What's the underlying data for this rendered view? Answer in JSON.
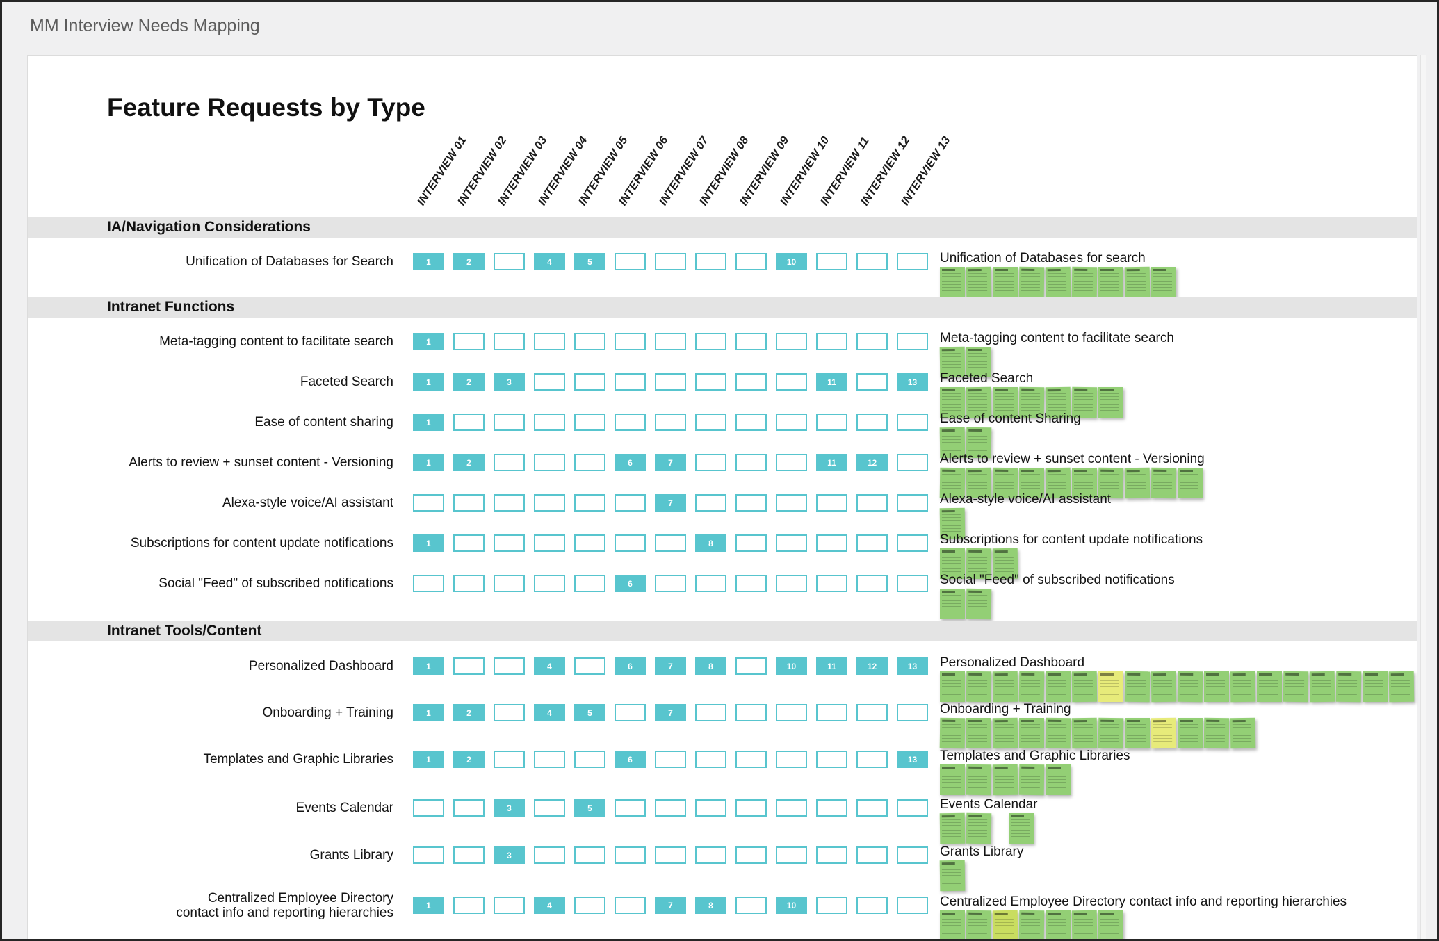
{
  "window": {
    "title": "MM Interview Needs Mapping"
  },
  "board": {
    "title": "Feature Requests by Type",
    "columns": [
      "INTERVIEW 01",
      "INTERVIEW 02",
      "INTERVIEW 03",
      "INTERVIEW 04",
      "INTERVIEW 05",
      "INTERVIEW 06",
      "INTERVIEW 07",
      "INTERVIEW 08",
      "INTERVIEW 09",
      "INTERVIEW 10",
      "INTERVIEW 11",
      "INTERVIEW 12",
      "INTERVIEW 13"
    ],
    "colors": {
      "cell_fill": "#58c5ce",
      "section_bg": "#e4e4e4",
      "note_green": "#93cf75",
      "note_yellow": "#e7eb7a",
      "note_lime": "#c9dd60"
    },
    "sections": [
      {
        "title": "IA/Navigation Considerations",
        "rows": [
          {
            "label": "Unification of Databases for Search",
            "filled": [
              1,
              2,
              4,
              5,
              10
            ],
            "cluster": {
              "label": "Unification of Databases for search",
              "notes": [
                "green",
                "green",
                "green",
                "green",
                "green",
                "green",
                "green",
                "green",
                "green"
              ]
            }
          }
        ]
      },
      {
        "title": "Intranet Functions",
        "rows": [
          {
            "label": "Meta-tagging content to facilitate search",
            "filled": [
              1
            ],
            "cluster": {
              "label": "Meta-tagging content to facilitate search",
              "notes": [
                "green",
                "green"
              ]
            }
          },
          {
            "label": "Faceted Search",
            "filled": [
              1,
              2,
              3,
              11,
              13
            ],
            "cluster": {
              "label": "Faceted Search",
              "notes": [
                "green",
                "green",
                "green",
                "green",
                "green",
                "green",
                "green"
              ]
            }
          },
          {
            "label": "Ease of content sharing",
            "filled": [
              1
            ],
            "cluster": {
              "label": "Ease of content Sharing",
              "notes": [
                "green",
                "green"
              ]
            }
          },
          {
            "label": "Alerts to review + sunset content - Versioning",
            "filled": [
              1,
              2,
              6,
              7,
              11,
              12
            ],
            "cluster": {
              "label": "Alerts to review + sunset content - Versioning",
              "notes": [
                "green",
                "green",
                "green",
                "green",
                "green",
                "green",
                "green",
                "green",
                "green",
                "green"
              ]
            }
          },
          {
            "label": "Alexa-style voice/AI assistant",
            "filled": [
              7
            ],
            "cluster": {
              "label": "Alexa-style voice/AI assistant",
              "notes": [
                "green"
              ]
            }
          },
          {
            "label": "Subscriptions for content update notifications",
            "filled": [
              1,
              8
            ],
            "cluster": {
              "label": "Subscriptions for content update notifications",
              "notes": [
                "green",
                "green",
                "green"
              ]
            }
          },
          {
            "label": "Social \"Feed\" of subscribed notifications",
            "filled": [
              6
            ],
            "cluster": {
              "label": "Social \"Feed\" of subscribed notifications",
              "notes": [
                "green",
                "green"
              ]
            }
          }
        ]
      },
      {
        "title": "Intranet Tools/Content",
        "rows": [
          {
            "label": "Personalized Dashboard",
            "filled": [
              1,
              4,
              6,
              7,
              8,
              10,
              11,
              12,
              13
            ],
            "cluster": {
              "label": "Personalized Dashboard",
              "notes": [
                "green",
                "green",
                "green",
                "green",
                "green",
                "green",
                "yellow",
                "green",
                "green",
                "green",
                "green",
                "green",
                "green",
                "green",
                "green",
                "green",
                "green",
                "green"
              ]
            }
          },
          {
            "label": "Onboarding + Training",
            "filled": [
              1,
              2,
              4,
              5,
              7
            ],
            "cluster": {
              "label": "Onboarding + Training",
              "notes": [
                "green",
                "green",
                "green",
                "green",
                "green",
                "green",
                "green",
                "green",
                "yellow",
                "green",
                "green",
                "green"
              ]
            }
          },
          {
            "label": "Templates and Graphic Libraries",
            "filled": [
              1,
              2,
              6,
              13
            ],
            "cluster": {
              "label": "Templates and Graphic Libraries",
              "notes": [
                "green",
                "green",
                "green",
                "green",
                "green"
              ]
            }
          },
          {
            "label": "Events Calendar",
            "filled": [
              3,
              5
            ],
            "cluster": {
              "label": "Events Calendar",
              "notes": [
                "green",
                "green",
                "green"
              ],
              "offsets": [
                0,
                1,
                2.6
              ]
            }
          },
          {
            "label": "Grants Library",
            "filled": [
              3
            ],
            "cluster": {
              "label": "Grants Library",
              "notes": [
                "green"
              ]
            }
          },
          {
            "label": "Centralized Employee Directory",
            "label2": "contact info and reporting hierarchies",
            "filled": [
              1,
              4,
              7,
              8,
              10
            ],
            "cluster": {
              "label": "Centralized Employee Directory contact info and reporting hierarchies",
              "notes": [
                "green",
                "green",
                "lime",
                "green",
                "green",
                "green",
                "green"
              ]
            }
          }
        ]
      }
    ]
  }
}
